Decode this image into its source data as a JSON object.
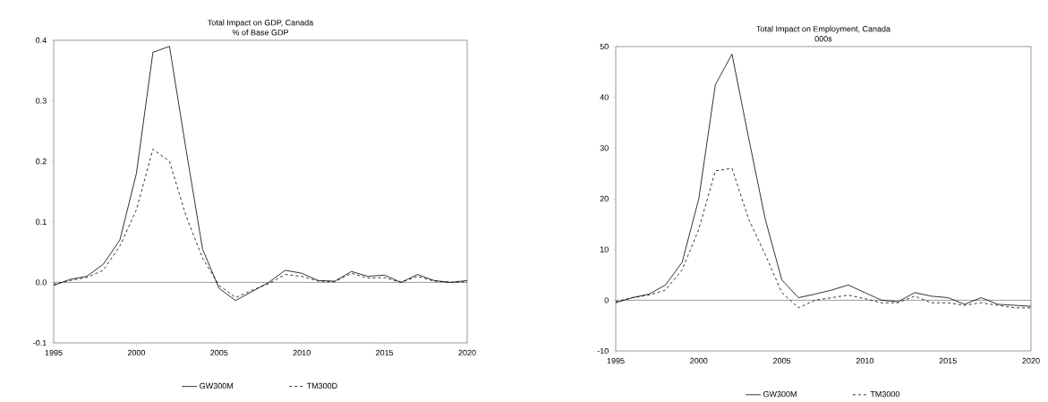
{
  "chart_data": [
    {
      "type": "line",
      "title": "Total Impact on GDP, Canada",
      "subtitle": "% of Base GDP",
      "x": [
        1995,
        1996,
        1997,
        1998,
        1999,
        2000,
        2001,
        2002,
        2003,
        2004,
        2005,
        2006,
        2007,
        2008,
        2009,
        2010,
        2011,
        2012,
        2013,
        2014,
        2015,
        2016,
        2017,
        2018,
        2019,
        2020
      ],
      "series": [
        {
          "name": "GW300M",
          "color": "#000000",
          "line_style": "solid",
          "values": [
            -0.005,
            0.005,
            0.01,
            0.03,
            0.07,
            0.18,
            0.38,
            0.39,
            0.22,
            0.055,
            -0.01,
            -0.03,
            -0.015,
            0.0,
            0.02,
            0.015,
            0.003,
            0.002,
            0.018,
            0.01,
            0.012,
            0.0,
            0.013,
            0.003,
            0.0,
            0.003
          ]
        },
        {
          "name": "TM300D",
          "color": "#000000",
          "line_style": "dashed",
          "values": [
            -0.003,
            0.003,
            0.008,
            0.02,
            0.06,
            0.12,
            0.22,
            0.2,
            0.11,
            0.04,
            -0.005,
            -0.025,
            -0.013,
            -0.002,
            0.013,
            0.01,
            0.002,
            0.001,
            0.015,
            0.007,
            0.008,
            0.0,
            0.01,
            0.002,
            0.0,
            0.001
          ]
        }
      ],
      "xlim": [
        1995,
        2020
      ],
      "xticks": [
        1995,
        2000,
        2005,
        2010,
        2015,
        2020
      ],
      "ylim": [
        -0.1,
        0.4
      ],
      "yticks": [
        {
          "value": -0.1,
          "label": "-0.1"
        },
        {
          "value": 0,
          "label": "0.0"
        },
        {
          "value": 0.1,
          "label": "0.1"
        },
        {
          "value": 0.2,
          "label": "0.2"
        },
        {
          "value": 0.3,
          "label": "0.3"
        },
        {
          "value": 0.4,
          "label": "0.4"
        }
      ],
      "ref_lines": [
        {
          "axis": "y",
          "value": 0,
          "color": "#000000"
        }
      ],
      "legend": "bottom",
      "grid": false
    },
    {
      "type": "line",
      "title": "Total Impact on Employment, Canada",
      "subtitle": "000s",
      "x": [
        1995,
        1996,
        1997,
        1998,
        1999,
        2000,
        2001,
        2002,
        2003,
        2004,
        2005,
        2006,
        2007,
        2008,
        2009,
        2010,
        2011,
        2012,
        2013,
        2014,
        2015,
        2016,
        2017,
        2018,
        2019,
        2020
      ],
      "series": [
        {
          "name": "GW300M",
          "color": "#000000",
          "line_style": "solid",
          "values": [
            -0.5,
            0.5,
            1.2,
            3,
            7.5,
            20,
            42.5,
            48.5,
            32,
            16,
            4,
            0.5,
            1.2,
            2,
            3,
            1.5,
            0,
            -0.3,
            1.5,
            0.8,
            0.5,
            -0.8,
            0.5,
            -0.8,
            -1,
            -1.2
          ]
        },
        {
          "name": "TM3000",
          "color": "#000000",
          "line_style": "dashed",
          "values": [
            -0.3,
            0.5,
            1,
            2,
            6,
            14,
            25.5,
            26,
            16,
            9,
            1.5,
            -1.5,
            0,
            0.5,
            1,
            0.3,
            -0.5,
            -0.5,
            0.8,
            -0.5,
            -0.5,
            -1,
            -0.5,
            -1,
            -1.5,
            -1.5
          ]
        }
      ],
      "xlim": [
        1995,
        2020
      ],
      "xticks": [
        1995,
        2000,
        2005,
        2010,
        2015,
        2020
      ],
      "ylim": [
        -10,
        50
      ],
      "yticks": [
        -10,
        0,
        10,
        20,
        30,
        40,
        50
      ],
      "ref_lines": [
        {
          "axis": "y",
          "value": 0,
          "color": "#000000"
        }
      ],
      "legend": "bottom",
      "grid": false
    }
  ]
}
